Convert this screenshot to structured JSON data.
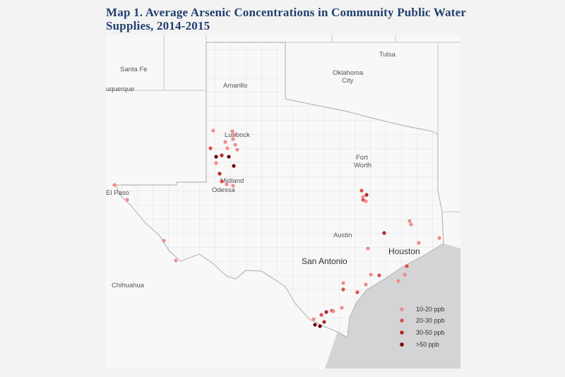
{
  "title": "Map 1. Average Arsenic Concentrations in Community Public Water Supplies, 2014-2015",
  "cities": {
    "tulsa": "Tulsa",
    "santa_fe": "Santa Fe",
    "albuquerque": "uquerque",
    "oklahoma_city_1": "Oklahoma",
    "oklahoma_city_2": "City",
    "amarillo": "Amarillo",
    "lubbock": "Lubbock",
    "fort_worth_1": "Fort",
    "fort_worth_2": "Worth",
    "midland": "Midland",
    "odessa": "Odessa",
    "el_paso": "El Paso",
    "austin": "Austin",
    "houston": "Houston",
    "san_antonio": "San Antonio",
    "chihuahua": "Chihuahua"
  },
  "legend": [
    {
      "label": "10-20 ppb",
      "color": "#f08c8c"
    },
    {
      "label": "20-30 ppb",
      "color": "#dc5050"
    },
    {
      "label": "30-50 ppb",
      "color": "#b42828"
    },
    {
      "label": ">50 ppb",
      "color": "#6e0a0a"
    }
  ],
  "colors": {
    "background": "#f3f3f3",
    "map_land": "#f8f8f8",
    "water": "#d4d4d6",
    "border": "#b9b9b9",
    "county_line": "#dcdcdc",
    "title": "#1f3f6e"
  }
}
